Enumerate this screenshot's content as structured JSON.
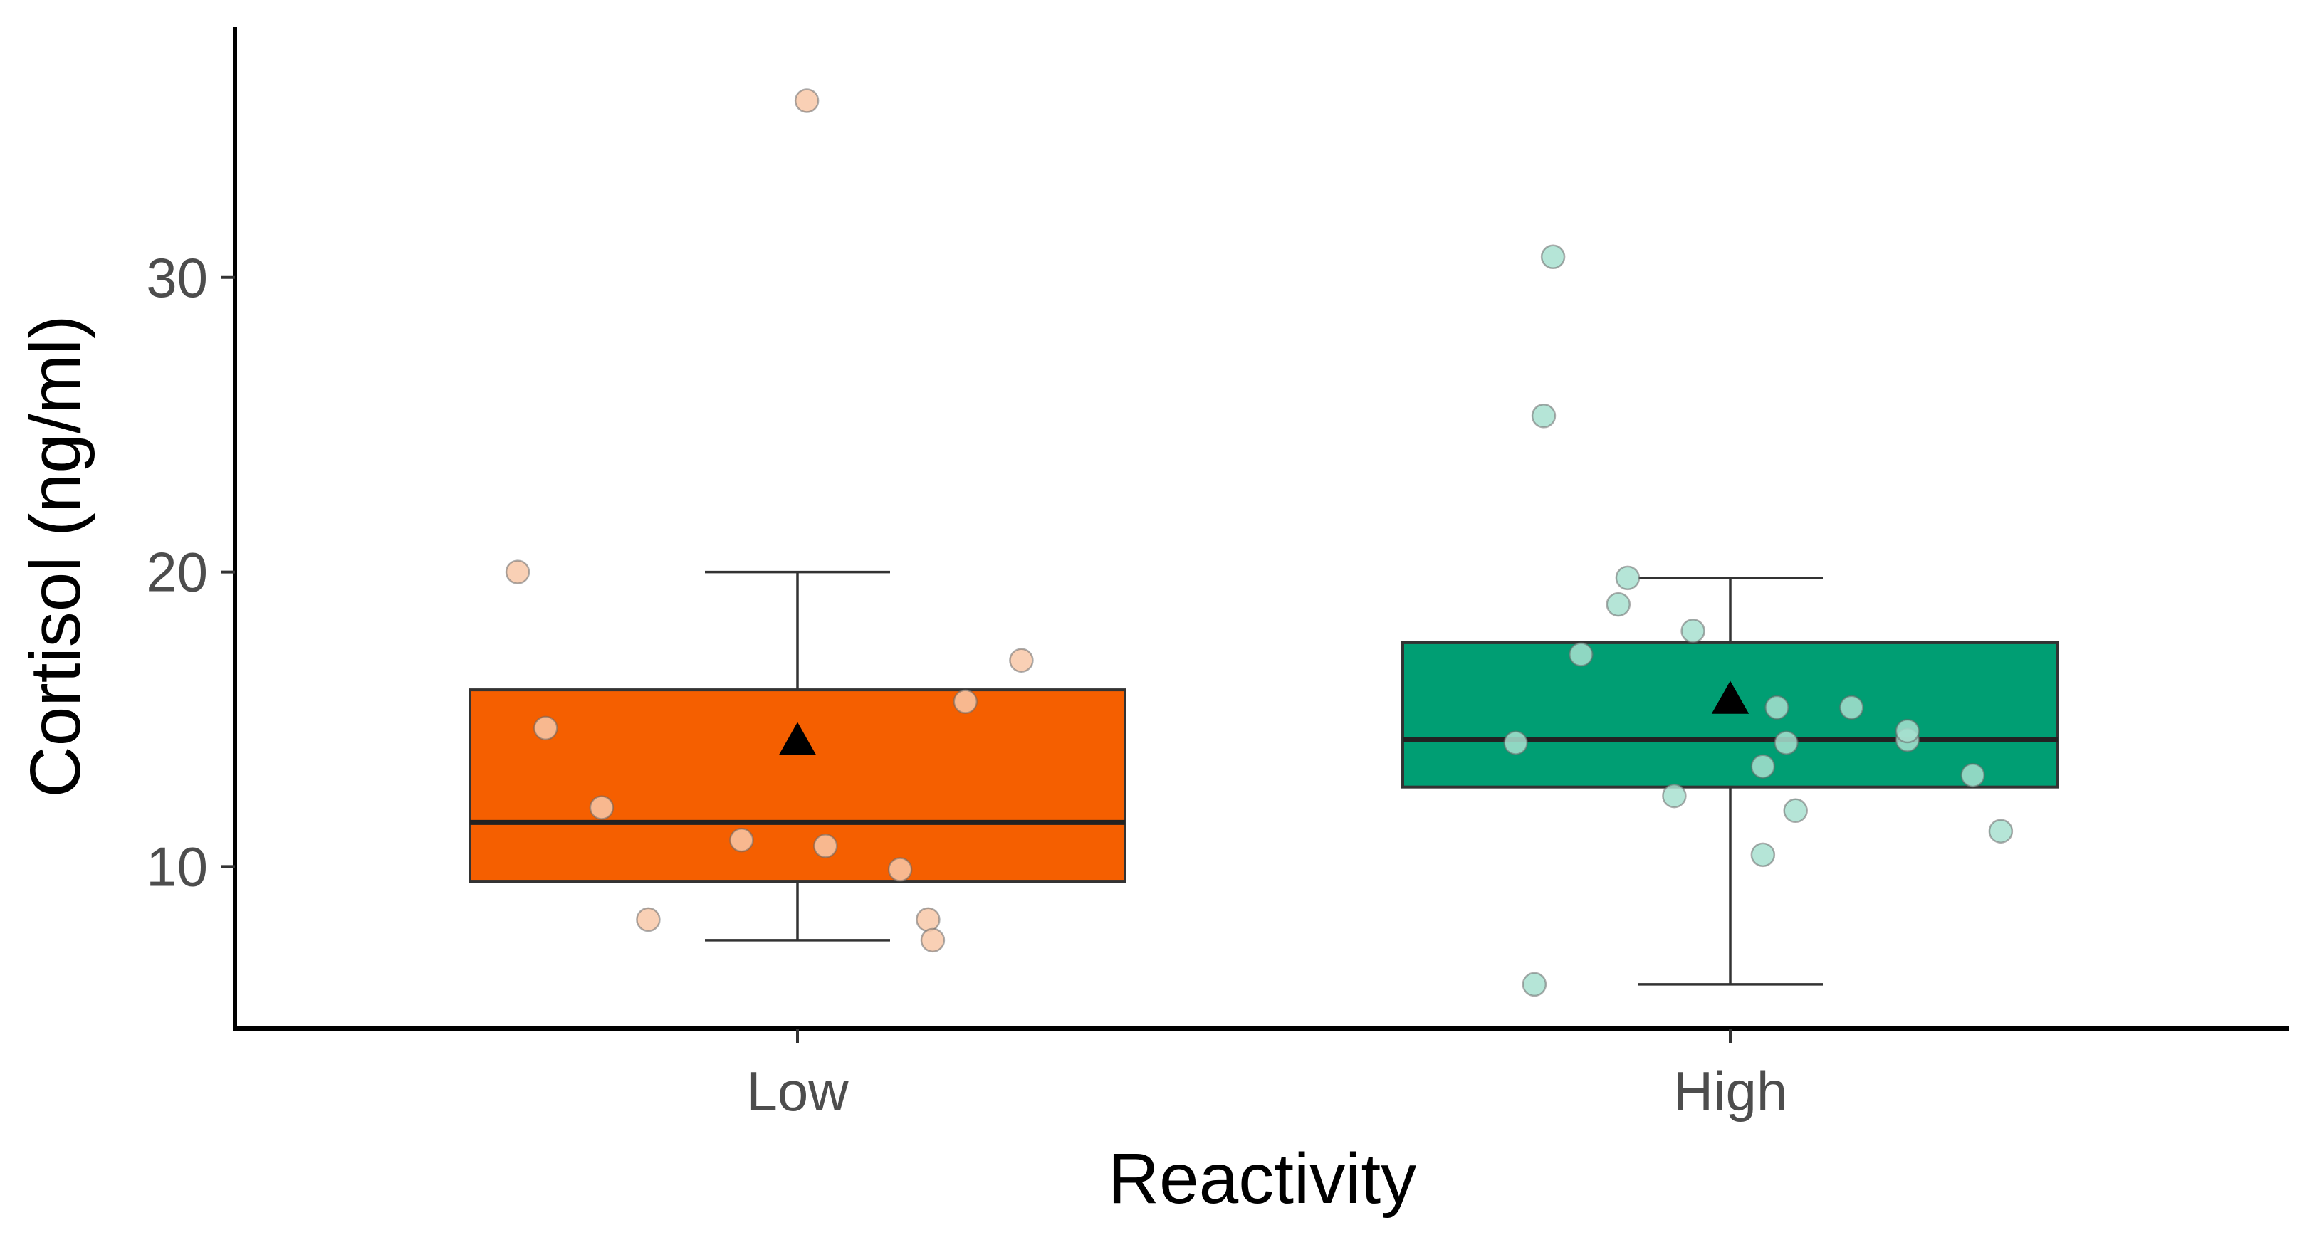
{
  "chart_data": {
    "type": "boxplot",
    "title": "",
    "xlabel": "Reactivity",
    "ylabel": "Cortisol (ng/ml)",
    "ylim": [
      4.5,
      38.5
    ],
    "yticks": [
      10,
      20,
      30
    ],
    "ytick_labels": [
      "10",
      "20",
      "30"
    ],
    "grid": false,
    "legend": "none",
    "categories": [
      "Low",
      "High"
    ],
    "groups": [
      {
        "name": "Low",
        "color": "#f55f00",
        "point_color": "#f8c8a8",
        "whisker_low": 7.5,
        "q1": 9.5,
        "median": 11.5,
        "q3": 16.0,
        "whisker_high": 20.0,
        "mean": 14.3,
        "points": [
          {
            "jitter": -0.3,
            "y": 20.0
          },
          {
            "jitter": -0.27,
            "y": 14.7
          },
          {
            "jitter": -0.21,
            "y": 12.0
          },
          {
            "jitter": -0.16,
            "y": 8.2
          },
          {
            "jitter": -0.06,
            "y": 10.9
          },
          {
            "jitter": 0.01,
            "y": 36.0
          },
          {
            "jitter": 0.03,
            "y": 10.7
          },
          {
            "jitter": 0.11,
            "y": 9.9
          },
          {
            "jitter": 0.14,
            "y": 8.2
          },
          {
            "jitter": 0.145,
            "y": 7.5
          },
          {
            "jitter": 0.18,
            "y": 15.6
          },
          {
            "jitter": 0.24,
            "y": 17.0
          }
        ]
      },
      {
        "name": "High",
        "color": "#009e73",
        "point_color": "#a8e0d0",
        "whisker_low": 6.0,
        "q1": 12.7,
        "median": 14.3,
        "q3": 17.6,
        "whisker_high": 19.8,
        "mean": 15.7,
        "points": [
          {
            "jitter": -0.23,
            "y": 14.2
          },
          {
            "jitter": -0.21,
            "y": 6.0
          },
          {
            "jitter": -0.2,
            "y": 25.3
          },
          {
            "jitter": -0.19,
            "y": 30.7
          },
          {
            "jitter": -0.16,
            "y": 17.2
          },
          {
            "jitter": -0.12,
            "y": 18.9
          },
          {
            "jitter": -0.11,
            "y": 19.8
          },
          {
            "jitter": -0.06,
            "y": 12.4
          },
          {
            "jitter": -0.04,
            "y": 18.0
          },
          {
            "jitter": 0.035,
            "y": 10.4
          },
          {
            "jitter": 0.035,
            "y": 13.4
          },
          {
            "jitter": 0.05,
            "y": 15.4
          },
          {
            "jitter": 0.06,
            "y": 14.2
          },
          {
            "jitter": 0.07,
            "y": 11.9
          },
          {
            "jitter": 0.13,
            "y": 15.4
          },
          {
            "jitter": 0.19,
            "y": 14.3
          },
          {
            "jitter": 0.19,
            "y": 14.6
          },
          {
            "jitter": 0.26,
            "y": 13.1
          },
          {
            "jitter": 0.29,
            "y": 11.2
          }
        ]
      }
    ]
  }
}
